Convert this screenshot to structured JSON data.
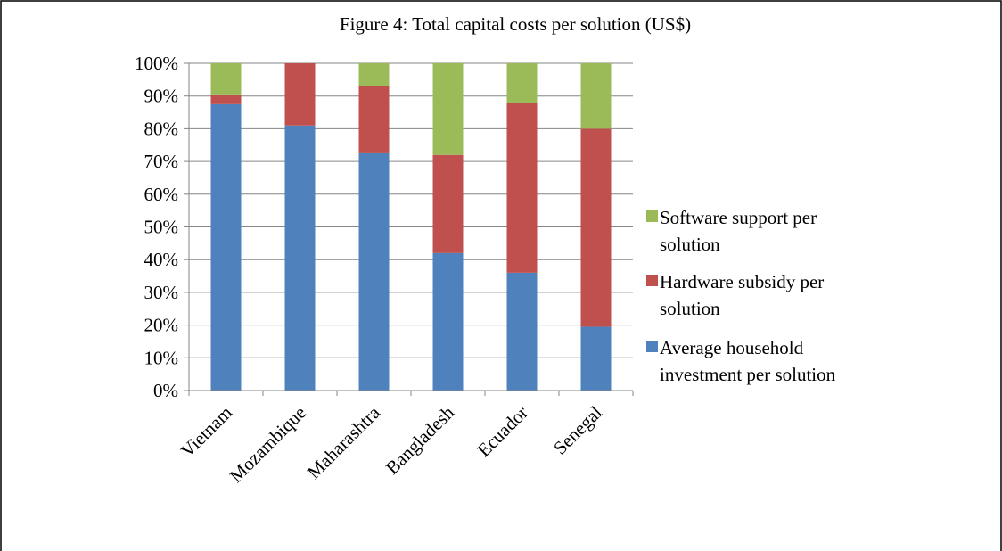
{
  "chart_data": {
    "type": "bar",
    "stacked": true,
    "title": "Figure 4: Total capital costs per solution (US$)",
    "xlabel": "",
    "ylabel": "",
    "categories": [
      "Vietnam",
      "Mozambique",
      "Maharashtra",
      "Bangladesh",
      "Ecuador",
      "Senegal"
    ],
    "series": [
      {
        "name": "Average household investment per solution",
        "color": "#4f81bd",
        "values": [
          87.5,
          81,
          72.5,
          42,
          36,
          19.5
        ]
      },
      {
        "name": "Hardware subsidy per solution",
        "color": "#c0504d",
        "values": [
          3,
          19,
          20.5,
          30,
          52,
          60.5
        ]
      },
      {
        "name": "Software support per solution",
        "color": "#9bbb59",
        "values": [
          9.5,
          0,
          7,
          28,
          12,
          20
        ]
      }
    ],
    "yticks": [
      "0%",
      "10%",
      "20%",
      "30%",
      "40%",
      "50%",
      "60%",
      "70%",
      "80%",
      "90%",
      "100%"
    ],
    "ylim": [
      0,
      100
    ],
    "grid": true,
    "legend": {
      "placement": "right",
      "lines": [
        [
          "Software support per",
          "solution"
        ],
        [
          "Hardware subsidy per",
          "solution"
        ],
        [
          "Average household",
          "investment per solution"
        ]
      ]
    }
  }
}
